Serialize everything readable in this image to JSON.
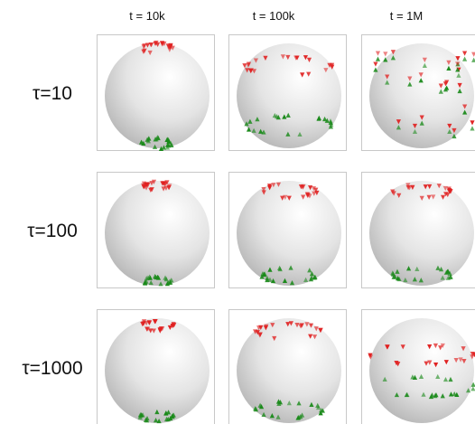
{
  "columns": [
    "t = 10k",
    "t = 100k",
    "t = 1M"
  ],
  "rows": [
    "τ=10",
    "τ=100",
    "τ=1000"
  ]
}
